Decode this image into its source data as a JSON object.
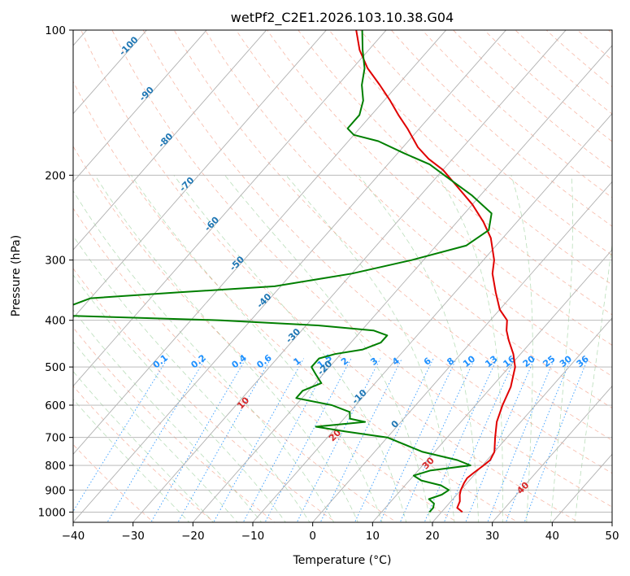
{
  "chart_data": {
    "type": "line",
    "subtype": "skew-T log-P diagram",
    "title": "wetPf2_C2E1.2026.103.10.38.G04",
    "xlabel": "Temperature (°C)",
    "ylabel": "Pressure (hPa)",
    "xlim": [
      -40,
      50
    ],
    "ylim": [
      1050,
      100
    ],
    "y_scale": "log",
    "x_ticks": [
      -40,
      -30,
      -20,
      -10,
      0,
      10,
      20,
      30,
      40,
      50
    ],
    "y_ticks": [
      100,
      200,
      300,
      400,
      500,
      600,
      700,
      800,
      900,
      1000
    ],
    "grid": true,
    "series": [
      {
        "color": "#e00000",
        "points": [
          [
            1000,
            23.5
          ],
          [
            980,
            22.0
          ],
          [
            950,
            21.5
          ],
          [
            920,
            20.5
          ],
          [
            900,
            20.0
          ],
          [
            870,
            19.5
          ],
          [
            850,
            19.3
          ],
          [
            830,
            19.6
          ],
          [
            800,
            20.2
          ],
          [
            780,
            20.5
          ],
          [
            750,
            20.0
          ],
          [
            700,
            18.0
          ],
          [
            650,
            16.0
          ],
          [
            600,
            14.5
          ],
          [
            550,
            13.2
          ],
          [
            500,
            11.0
          ],
          [
            470,
            8.8
          ],
          [
            440,
            6.0
          ],
          [
            420,
            4.2
          ],
          [
            400,
            2.8
          ],
          [
            380,
            0.0
          ],
          [
            350,
            -3.2
          ],
          [
            320,
            -6.5
          ],
          [
            300,
            -8.2
          ],
          [
            270,
            -12.0
          ],
          [
            250,
            -15.6
          ],
          [
            230,
            -20.0
          ],
          [
            210,
            -25.5
          ],
          [
            195,
            -30.0
          ],
          [
            185,
            -34.0
          ],
          [
            175,
            -37.5
          ],
          [
            160,
            -42.0
          ],
          [
            150,
            -45.5
          ],
          [
            140,
            -49.0
          ],
          [
            130,
            -53.0
          ],
          [
            120,
            -57.5
          ],
          [
            110,
            -61.5
          ],
          [
            100,
            -65.0
          ]
        ]
      },
      {
        "color": "#007f00",
        "points": [
          [
            1000,
            18.0
          ],
          [
            980,
            18.0
          ],
          [
            960,
            17.5
          ],
          [
            940,
            16.0
          ],
          [
            920,
            17.5
          ],
          [
            900,
            18.0
          ],
          [
            880,
            16.0
          ],
          [
            860,
            12.0
          ],
          [
            840,
            10.0
          ],
          [
            820,
            12.0
          ],
          [
            800,
            18.0
          ],
          [
            780,
            15.0
          ],
          [
            750,
            8.0
          ],
          [
            700,
            0.0
          ],
          [
            680,
            -8.0
          ],
          [
            665,
            -13.5
          ],
          [
            650,
            -6.0
          ],
          [
            640,
            -9.0
          ],
          [
            620,
            -10.0
          ],
          [
            600,
            -14.0
          ],
          [
            580,
            -21.0
          ],
          [
            560,
            -21.0
          ],
          [
            540,
            -19.0
          ],
          [
            520,
            -21.0
          ],
          [
            500,
            -23.0
          ],
          [
            480,
            -23.0
          ],
          [
            470,
            -21.0
          ],
          [
            460,
            -17.0
          ],
          [
            445,
            -15.0
          ],
          [
            430,
            -15.0
          ],
          [
            420,
            -18.0
          ],
          [
            410,
            -28.0
          ],
          [
            400,
            -45.0
          ],
          [
            390,
            -75.0
          ],
          [
            360,
            -70.0
          ],
          [
            350,
            -56.0
          ],
          [
            340,
            -41.0
          ],
          [
            320,
            -30.0
          ],
          [
            300,
            -22.0
          ],
          [
            280,
            -15.0
          ],
          [
            260,
            -13.5
          ],
          [
            240,
            -15.5
          ],
          [
            220,
            -21.5
          ],
          [
            200,
            -29.0
          ],
          [
            190,
            -33.0
          ],
          [
            180,
            -39.0
          ],
          [
            170,
            -45.0
          ],
          [
            165,
            -50.0
          ],
          [
            160,
            -52.0
          ],
          [
            150,
            -52.0
          ],
          [
            140,
            -53.5
          ],
          [
            130,
            -56.0
          ],
          [
            120,
            -58.0
          ],
          [
            110,
            -61.0
          ],
          [
            100,
            -64.0
          ]
        ]
      }
    ],
    "isotherm_labels": {
      "color": "#1f77b4",
      "labels": [
        [
          "-100",
          109
        ],
        [
          "-90",
          137
        ],
        [
          "-80",
          171
        ],
        [
          "-70",
          211
        ],
        [
          "-60",
          255
        ],
        [
          "-50",
          308
        ],
        [
          "-40",
          368
        ],
        [
          "-30",
          435
        ],
        [
          "-20",
          507
        ],
        [
          "-10",
          582
        ],
        [
          "0",
          664
        ]
      ]
    },
    "mixing_ratio_labels": {
      "color": "#1e90ff",
      "values": [
        "0.1",
        "0.2",
        "0.4",
        "0.6",
        "1",
        "1.5",
        "2",
        "3",
        "4",
        "6",
        "8",
        "10",
        "13",
        "16",
        "20",
        "25",
        "30",
        "36"
      ]
    },
    "dry_adiabat_labels": {
      "color": "#d62728",
      "labels": [
        [
          "10",
          600
        ],
        [
          "20",
          700
        ],
        [
          "30",
          800
        ],
        [
          "40",
          900
        ]
      ]
    }
  }
}
